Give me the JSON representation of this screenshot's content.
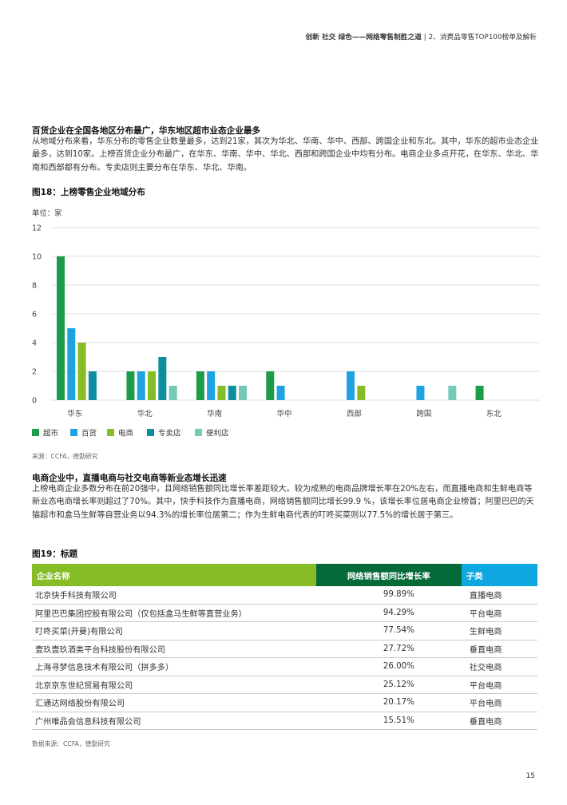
{
  "header": {
    "left": "创新 社交 绿色——网络零售制胜之道",
    "separator": "|",
    "right": "2、消费品零售TOP100榜单及解析"
  },
  "section1": {
    "title": "百货企业在全国各地区分布最广，华东地区超市业态企业最多",
    "body": "从地域分布来看，华东分布的零售企业数量最多，达到21家，其次为华北、华南、华中、西部、跨国企业和东北。其中，华东的超市业态企业最多，达到10家。上榜百货企业分布最广，在华东、华南、华中、华北、西部和跨国企业中均有分布。电商企业多点开花，在华东、华北、华南和西部都有分布。专卖店则主要分布在华东、华北、华南。"
  },
  "figure18": {
    "title": "图18：上榜零售企业地域分布",
    "unit": "单位：家",
    "source": "来源：CCFA，德勤研究"
  },
  "chart_data": {
    "type": "bar",
    "title": "图18：上榜零售企业地域分布",
    "ylabel": "单位：家",
    "ylim": [
      0,
      12
    ],
    "yticks": [
      0,
      2,
      4,
      6,
      8,
      10,
      12
    ],
    "grid": true,
    "legend_position": "bottom-left",
    "categories": [
      "华东",
      "华北",
      "华南",
      "华中",
      "西部",
      "跨国",
      "东北"
    ],
    "series": [
      {
        "name": "超市",
        "color": "#1e9b48",
        "values": [
          10,
          2,
          2,
          2,
          0,
          0,
          1
        ]
      },
      {
        "name": "百货",
        "color": "#1fa3e0",
        "values": [
          5,
          2,
          2,
          1,
          2,
          1,
          0
        ]
      },
      {
        "name": "电商",
        "color": "#86bc25",
        "values": [
          4,
          2,
          1,
          0,
          1,
          0,
          0
        ]
      },
      {
        "name": "专卖店",
        "color": "#0c8ea0",
        "values": [
          2,
          3,
          1,
          0,
          0,
          0,
          0
        ]
      },
      {
        "name": "便利店",
        "color": "#75c9b7",
        "values": [
          0,
          1,
          1,
          0,
          0,
          1,
          0
        ]
      }
    ]
  },
  "section2": {
    "title": "电商企业中，直播电商与社交电商等新业态增长迅速",
    "body": "上榜电商企业多数分布在前20强中，且网络销售额同比增长率差距较大。较为成熟的电商品牌增长率在20%左右，而直播电商和生鲜电商等新业态电商增长率则超过了70%。其中，快手科技作为直播电商，网络销售额同比增长99.9 %，该增长率位居电商企业榜首；阿里巴巴的天猫超市和盒马生鲜等自营业务以94.3%的增长率位居第二；作为生鲜电商代表的叮咚买菜则以77.5%的增长居于第三。"
  },
  "figure19": {
    "title": "图19：标题",
    "source": "数据来源：CCFA，德勤研究",
    "headers": [
      "企业名称",
      "网络销售额同比增长率",
      "子类"
    ],
    "header_colors": [
      "#86bc25",
      "#046a38",
      "#0fa7e0"
    ],
    "rows": [
      [
        "北京快手科技有限公司",
        "99.89%",
        "直播电商"
      ],
      [
        "阿里巴巴集团控股有限公司（仅包括盒马生鲜等直营业务）",
        "94.29%",
        "平台电商"
      ],
      [
        "叮咚买菜(开曼)有限公司",
        "77.54%",
        "生鲜电商"
      ],
      [
        "壹玖壹玖酒类平台科技股份有限公司",
        "27.72%",
        "垂直电商"
      ],
      [
        "上海寻梦信息技术有限公司（拼多多）",
        "26.00%",
        "社交电商"
      ],
      [
        "北京京东世纪贸易有限公司",
        "25.12%",
        "平台电商"
      ],
      [
        "汇通达网络股份有限公司",
        "20.17%",
        "平台电商"
      ],
      [
        "广州唯品会信息科技有限公司",
        "15.51%",
        "垂直电商"
      ]
    ]
  },
  "page_number": "15"
}
